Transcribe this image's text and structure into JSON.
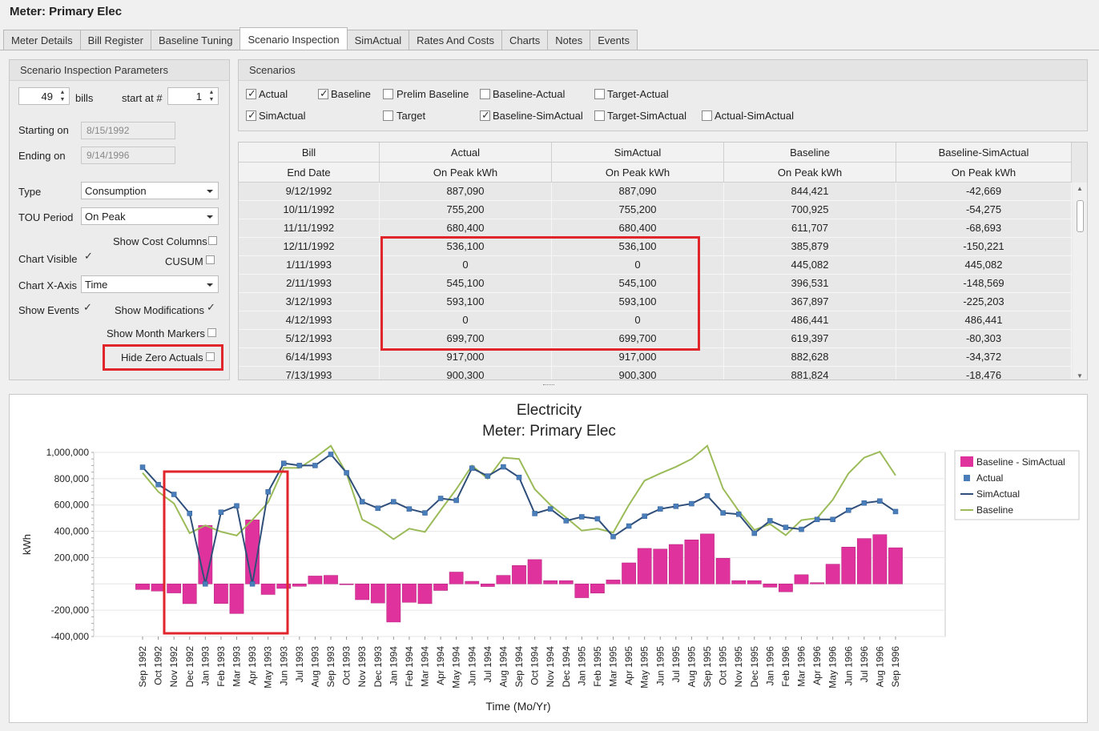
{
  "window": {
    "title": "Meter:  Primary Elec"
  },
  "tabs": [
    {
      "label": "Meter Details",
      "active": false
    },
    {
      "label": "Bill Register",
      "active": false
    },
    {
      "label": "Baseline Tuning",
      "active": false
    },
    {
      "label": "Scenario Inspection",
      "active": true
    },
    {
      "label": "SimActual",
      "active": false
    },
    {
      "label": "Rates And Costs",
      "active": false
    },
    {
      "label": "Charts",
      "active": false
    },
    {
      "label": "Notes",
      "active": false
    },
    {
      "label": "Events",
      "active": false
    }
  ],
  "params": {
    "heading": "Scenario Inspection Parameters",
    "bills_value": "49",
    "bills_label": "bills",
    "start_label": "start at #",
    "start_value": "1",
    "starting_label": "Starting on",
    "starting_value": "8/15/1992",
    "ending_label": "Ending on",
    "ending_value": "9/14/1996",
    "type_label": "Type",
    "type_value": "Consumption",
    "tou_label": "TOU Period",
    "tou_value": "On Peak",
    "show_cost_label": "Show Cost Columns",
    "show_cost_checked": false,
    "chart_visible_label": "Chart Visible",
    "chart_visible_checked": true,
    "cusum_label": "CUSUM",
    "cusum_checked": false,
    "chart_xaxis_label": "Chart X-Axis",
    "chart_xaxis_value": "Time",
    "show_events_label": "Show Events",
    "show_events_checked": true,
    "show_mods_label": "Show Modifications",
    "show_mods_checked": true,
    "show_month_label": "Show Month Markers",
    "show_month_checked": false,
    "hide_zero_label": "Hide Zero Actuals",
    "hide_zero_checked": false
  },
  "scenarios": {
    "heading": "Scenarios",
    "items": [
      {
        "label": "Actual",
        "checked": true
      },
      {
        "label": "Baseline",
        "checked": true
      },
      {
        "label": "Prelim Baseline",
        "checked": false
      },
      {
        "label": "Baseline-Actual",
        "checked": false
      },
      {
        "label": "Target-Actual",
        "checked": false
      },
      {
        "label": "SimActual",
        "checked": true
      },
      {
        "label": "Target",
        "checked": false
      },
      {
        "label": "Baseline-SimActual",
        "checked": true
      },
      {
        "label": "Target-SimActual",
        "checked": false
      },
      {
        "label": "Actual-SimActual",
        "checked": false
      }
    ]
  },
  "table": {
    "header1": [
      "Bill",
      "Actual",
      "SimActual",
      "Baseline",
      "Baseline-SimActual"
    ],
    "header2": [
      "End Date",
      "On Peak kWh",
      "On Peak kWh",
      "On Peak kWh",
      "On Peak kWh"
    ],
    "rows": [
      [
        "9/12/1992",
        "887,090",
        "887,090",
        "844,421",
        "-42,669"
      ],
      [
        "10/11/1992",
        "755,200",
        "755,200",
        "700,925",
        "-54,275"
      ],
      [
        "11/11/1992",
        "680,400",
        "680,400",
        "611,707",
        "-68,693"
      ],
      [
        "12/11/1992",
        "536,100",
        "536,100",
        "385,879",
        "-150,221"
      ],
      [
        "1/11/1993",
        "0",
        "0",
        "445,082",
        "445,082"
      ],
      [
        "2/11/1993",
        "545,100",
        "545,100",
        "396,531",
        "-148,569"
      ],
      [
        "3/12/1993",
        "593,100",
        "593,100",
        "367,897",
        "-225,203"
      ],
      [
        "4/12/1993",
        "0",
        "0",
        "486,441",
        "486,441"
      ],
      [
        "5/12/1993",
        "699,700",
        "699,700",
        "619,397",
        "-80,303"
      ],
      [
        "6/14/1993",
        "917,000",
        "917,000",
        "882,628",
        "-34,372"
      ],
      [
        "7/13/1993",
        "900,300",
        "900,300",
        "881,824",
        "-18,476"
      ]
    ]
  },
  "chart_data": {
    "type": "bar",
    "title": "Electricity",
    "subtitle": "Meter: Primary Elec",
    "xlabel": "Time (Mo/Yr)",
    "ylabel": "kWh",
    "ylim": [
      -400000,
      1000000
    ],
    "yticks": [
      -400000,
      -200000,
      200000,
      400000,
      600000,
      800000,
      1000000
    ],
    "ytick_labels": [
      "-400,000",
      "-200,000",
      "200,000",
      "400,000",
      "600,000",
      "800,000",
      "1,000,000"
    ],
    "grid": true,
    "legend_position": "right",
    "categories": [
      "Sep 1992",
      "Oct 1992",
      "Nov 1992",
      "Dec 1992",
      "Jan 1993",
      "Feb 1993",
      "Mar 1993",
      "Apr 1993",
      "May 1993",
      "Jun 1993",
      "Jul 1993",
      "Aug 1993",
      "Sep 1993",
      "Oct 1993",
      "Nov 1993",
      "Dec 1993",
      "Jan 1994",
      "Feb 1994",
      "Mar 1994",
      "Apr 1994",
      "May 1994",
      "Jun 1994",
      "Jul 1994",
      "Aug 1994",
      "Sep 1994",
      "Oct 1994",
      "Nov 1994",
      "Dec 1994",
      "Jan 1995",
      "Feb 1995",
      "Mar 1995",
      "Apr 1995",
      "May 1995",
      "Jun 1995",
      "Jul 1995",
      "Aug 1995",
      "Sep 1995",
      "Oct 1995",
      "Nov 1995",
      "Dec 1995",
      "Jan 1996",
      "Feb 1996",
      "Mar 1996",
      "Apr 1996",
      "May 1996",
      "Jun 1996",
      "Jul 1996",
      "Aug 1996",
      "Sep 1996"
    ],
    "series": [
      {
        "name": "Baseline - SimActual",
        "kind": "bar",
        "color": "#e0329c",
        "values": [
          -42669,
          -54275,
          -68693,
          -150221,
          445082,
          -148569,
          -225203,
          486441,
          -80303,
          -34372,
          -18476,
          60000,
          65000,
          -5000,
          -120000,
          -145000,
          -290000,
          -140000,
          -150000,
          -50000,
          90000,
          20000,
          -20000,
          65000,
          140000,
          185000,
          25000,
          25000,
          -105000,
          -70000,
          30000,
          160000,
          270000,
          265000,
          300000,
          335000,
          380000,
          195000,
          25000,
          25000,
          -25000,
          -60000,
          70000,
          10000,
          150000,
          280000,
          345000,
          375000,
          275000
        ]
      },
      {
        "name": "Actual",
        "kind": "point",
        "color": "#4a7ebb",
        "values": [
          887090,
          755200,
          680400,
          536100,
          0,
          545100,
          593100,
          0,
          699700,
          917000,
          900300,
          900000,
          985000,
          845000,
          625000,
          575000,
          625000,
          570000,
          540000,
          650000,
          635000,
          880000,
          820000,
          890000,
          810000,
          535000,
          570000,
          480000,
          510000,
          495000,
          360000,
          440000,
          515000,
          570000,
          590000,
          610000,
          670000,
          540000,
          530000,
          385000,
          480000,
          430000,
          415000,
          490000,
          490000,
          560000,
          615000,
          630000,
          550000
        ]
      },
      {
        "name": "SimActual",
        "kind": "line",
        "color": "#2f4f7a",
        "values": [
          887090,
          755200,
          680400,
          536100,
          0,
          545100,
          593100,
          0,
          699700,
          917000,
          900300,
          900000,
          985000,
          845000,
          625000,
          575000,
          625000,
          570000,
          540000,
          650000,
          635000,
          880000,
          820000,
          890000,
          810000,
          535000,
          570000,
          480000,
          510000,
          495000,
          360000,
          440000,
          515000,
          570000,
          590000,
          610000,
          670000,
          540000,
          530000,
          385000,
          480000,
          430000,
          415000,
          490000,
          490000,
          560000,
          615000,
          630000,
          550000
        ]
      },
      {
        "name": "Baseline",
        "kind": "line",
        "color": "#9bbb59",
        "values": [
          844421,
          700925,
          611707,
          385879,
          445082,
          396531,
          367897,
          486441,
          619397,
          882628,
          881824,
          960000,
          1050000,
          840000,
          490000,
          425000,
          340000,
          420000,
          395000,
          560000,
          720000,
          900000,
          800000,
          960000,
          950000,
          720000,
          600000,
          505000,
          405000,
          420000,
          390000,
          600000,
          785000,
          840000,
          890000,
          950000,
          1050000,
          725000,
          555000,
          410000,
          455000,
          370000,
          485000,
          500000,
          640000,
          840000,
          960000,
          1005000,
          825000
        ]
      }
    ]
  }
}
